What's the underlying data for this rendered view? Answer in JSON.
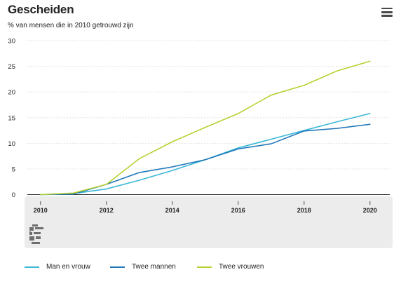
{
  "header": {
    "title": "Gescheiden",
    "subtitle": "% van mensen die in 2010 getrouwd zijn"
  },
  "menu": {
    "icon": "hamburger-menu-icon"
  },
  "logo": {
    "icon": "cbs-logo-icon"
  },
  "colors": {
    "Man en vrouw": "#3bb8d8",
    "Twee mannen": "#1f77b8",
    "Twee vrouwen": "#b7d232",
    "gridline": "#e3e3e3",
    "axis_band": "#ececec"
  },
  "chart_data": {
    "type": "line",
    "title": "Gescheiden",
    "subtitle": "% van mensen die in 2010 getrouwd zijn",
    "xlabel": "",
    "ylabel": "",
    "x": [
      2010,
      2011,
      2012,
      2013,
      2014,
      2015,
      2016,
      2017,
      2018,
      2019,
      2020
    ],
    "xticks": [
      2010,
      2012,
      2014,
      2016,
      2018,
      2020
    ],
    "yticks": [
      0,
      5,
      10,
      15,
      20,
      25,
      30
    ],
    "xlim": [
      2009.6,
      2020.6
    ],
    "ylim": [
      0,
      30
    ],
    "grid": true,
    "legend_position": "bottom",
    "series": [
      {
        "name": "Man en vrouw",
        "values": [
          0,
          0.2,
          1.1,
          2.8,
          4.7,
          6.8,
          9.1,
          10.8,
          12.5,
          14.2,
          15.8
        ]
      },
      {
        "name": "Twee mannen",
        "values": [
          0,
          0.1,
          2.0,
          4.3,
          5.4,
          6.8,
          8.9,
          9.9,
          12.4,
          12.9,
          13.7
        ]
      },
      {
        "name": "Twee vrouwen",
        "values": [
          0,
          0.3,
          2.0,
          7.0,
          10.3,
          13.1,
          15.8,
          19.4,
          21.3,
          24.1,
          26.0
        ]
      }
    ]
  }
}
